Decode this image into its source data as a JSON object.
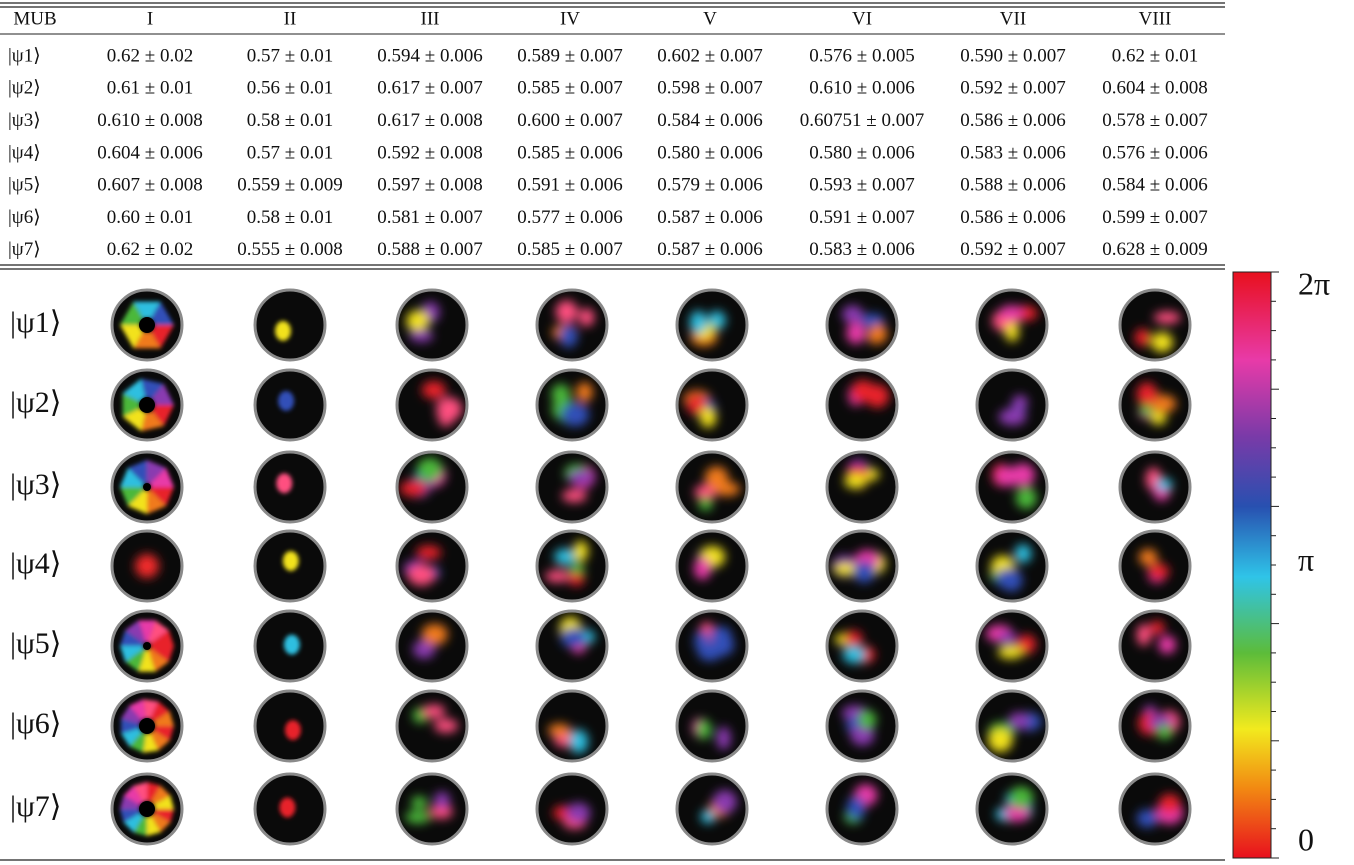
{
  "table": {
    "header": [
      "MUB",
      "I",
      "II",
      "III",
      "IV",
      "V",
      "VI",
      "VII",
      "VIII"
    ],
    "rows": [
      [
        "|ψ1⟩",
        "0.62 ± 0.02",
        "0.57 ± 0.01",
        "0.594 ± 0.006",
        "0.589 ± 0.007",
        "0.602 ± 0.007",
        "0.576 ± 0.005",
        "0.590 ± 0.007",
        "0.62 ± 0.01"
      ],
      [
        "|ψ2⟩",
        "0.61 ± 0.01",
        "0.56 ± 0.01",
        "0.617 ± 0.007",
        "0.585 ± 0.007",
        "0.598 ± 0.007",
        "0.610 ± 0.006",
        "0.592 ± 0.007",
        "0.604 ± 0.008"
      ],
      [
        "|ψ3⟩",
        "0.610 ± 0.008",
        "0.58 ± 0.01",
        "0.617 ± 0.008",
        "0.600 ± 0.007",
        "0.584 ± 0.006",
        "0.60751 ± 0.007",
        "0.586 ± 0.006",
        "0.578 ± 0.007"
      ],
      [
        "|ψ4⟩",
        "0.604 ± 0.006",
        "0.57 ± 0.01",
        "0.592 ± 0.008",
        "0.585 ± 0.006",
        "0.580 ± 0.006",
        "0.580 ± 0.006",
        "0.583 ± 0.006",
        "0.576 ± 0.006"
      ],
      [
        "|ψ5⟩",
        "0.607 ± 0.008",
        "0.559 ± 0.009",
        "0.597 ± 0.008",
        "0.591 ± 0.006",
        "0.579 ± 0.006",
        "0.593 ± 0.007",
        "0.588 ± 0.006",
        "0.584 ± 0.006"
      ],
      [
        "|ψ6⟩",
        "0.60 ± 0.01",
        "0.58 ± 0.01",
        "0.581 ± 0.007",
        "0.577 ± 0.006",
        "0.587 ± 0.006",
        "0.591 ± 0.007",
        "0.586 ± 0.006",
        "0.599 ± 0.007"
      ],
      [
        "|ψ7⟩",
        "0.62 ± 0.02",
        "0.555 ± 0.008",
        "0.588 ± 0.007",
        "0.585 ± 0.007",
        "0.587 ± 0.006",
        "0.583 ± 0.006",
        "0.592 ± 0.007",
        "0.628 ± 0.009"
      ]
    ]
  },
  "images": {
    "row_labels": [
      "|ψ1⟩",
      "|ψ2⟩",
      "|ψ3⟩",
      "|ψ4⟩",
      "|ψ5⟩",
      "|ψ6⟩",
      "|ψ7⟩"
    ]
  },
  "colorbar": {
    "labels": [
      "2π",
      "π",
      "0"
    ]
  }
}
